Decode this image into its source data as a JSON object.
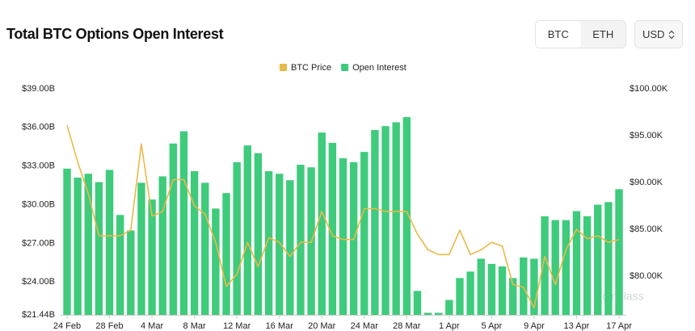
{
  "ui": {
    "tabs": [
      "BTC",
      "ETH"
    ],
    "currency": "USD"
  },
  "chart_data": {
    "type": "bar-line",
    "title": "Total BTC Options Open Interest",
    "watermark": "Coinglass",
    "categories": [
      "24 Feb",
      null,
      null,
      null,
      "28 Feb",
      null,
      null,
      null,
      "4 Mar",
      null,
      null,
      null,
      "8 Mar",
      null,
      null,
      null,
      "12 Mar",
      null,
      null,
      null,
      "16 Mar",
      null,
      null,
      null,
      "20 Mar",
      null,
      null,
      null,
      "24 Mar",
      null,
      null,
      null,
      "28 Mar",
      null,
      null,
      null,
      "1 Apr",
      null,
      null,
      null,
      "5 Apr",
      null,
      null,
      null,
      "9 Apr",
      null,
      null,
      null,
      "13 Apr",
      null,
      null,
      null,
      "17 Apr"
    ],
    "series": [
      {
        "name": "BTC Price",
        "type": "line",
        "axis": "y2",
        "color": "#e9b949",
        "values": [
          96100,
          92200,
          88800,
          84300,
          84300,
          84300,
          84900,
          94100,
          86400,
          86900,
          90300,
          90300,
          87500,
          86600,
          83600,
          78900,
          80200,
          83600,
          81000,
          84100,
          83600,
          82100,
          83600,
          83600,
          86900,
          84300,
          83900,
          83900,
          87200,
          87200,
          86900,
          86900,
          86900,
          84500,
          82800,
          82300,
          82300,
          84900,
          82300,
          82800,
          83600,
          83200,
          79100,
          78800,
          76600,
          82100,
          79100,
          82800,
          85000,
          84000,
          84300,
          83600,
          83900
        ]
      },
      {
        "name": "Open Interest",
        "type": "bar",
        "axis": "y",
        "color": "#3ecb7c",
        "values": [
          32.8,
          32.1,
          32.4,
          31.75,
          32.7,
          29.2,
          28.0,
          31.7,
          30.4,
          32.2,
          34.75,
          35.7,
          32.6,
          31.7,
          29.7,
          30.9,
          33.3,
          34.6,
          34.0,
          32.6,
          32.4,
          31.9,
          33.1,
          32.9,
          35.6,
          34.8,
          33.6,
          33.3,
          34.1,
          35.8,
          36.1,
          36.4,
          36.8,
          23.3,
          21.6,
          21.6,
          22.6,
          24.3,
          24.8,
          25.8,
          25.4,
          25.2,
          24.3,
          25.9,
          25.8,
          29.1,
          28.8,
          28.8,
          29.5,
          29.1,
          30.0,
          30.2,
          31.2
        ]
      }
    ],
    "ylim": [
      21.44,
      39
    ],
    "yticks": [
      {
        "value": 21.44,
        "label": "$21.44B"
      },
      {
        "value": 24,
        "label": "$24.00B"
      },
      {
        "value": 27,
        "label": "$27.00B"
      },
      {
        "value": 30,
        "label": "$30.00B"
      },
      {
        "value": 33,
        "label": "$33.00B"
      },
      {
        "value": 36,
        "label": "$36.00B"
      },
      {
        "value": 39,
        "label": "$39.00B"
      }
    ],
    "y2lim": [
      75860,
      100000
    ],
    "y2ticks": [
      {
        "value": 80000,
        "label": "$80.00K"
      },
      {
        "value": 85000,
        "label": "$85.00K"
      },
      {
        "value": 90000,
        "label": "$90.00K"
      },
      {
        "value": 95000,
        "label": "$95.00K"
      },
      {
        "value": 100000,
        "label": "$100.00K"
      }
    ],
    "legend": "top"
  }
}
